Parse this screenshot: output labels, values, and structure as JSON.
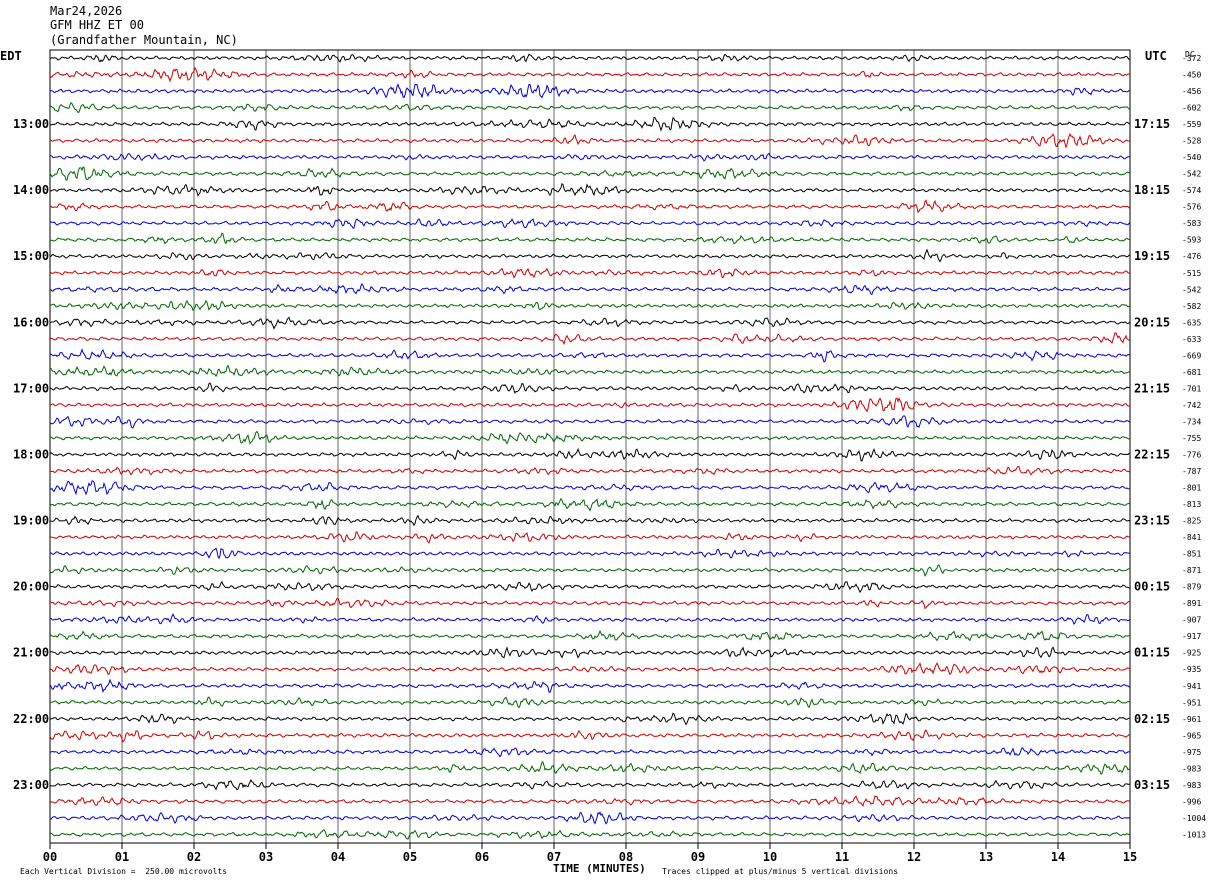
{
  "header": {
    "date": "Mar24,2026",
    "station": "GFM HHZ ET 00",
    "location": "(Grandfather Mountain, NC)"
  },
  "left_tz": "EDT",
  "right_tz": "UTC",
  "dc_label": "DC",
  "chart_data": {
    "type": "line",
    "plot_kind": "helicorder",
    "xlabel": "TIME (MINUTES)",
    "x_ticks": [
      "00",
      "01",
      "02",
      "03",
      "04",
      "05",
      "06",
      "07",
      "08",
      "09",
      "10",
      "11",
      "12",
      "13",
      "14",
      "15"
    ],
    "x_range": [
      0,
      15
    ],
    "rows_per_hour": 4,
    "row_count": 48,
    "trace_colors": [
      "#000000",
      "#cc0000",
      "#0000cc",
      "#006600"
    ],
    "left_hour_labels": [
      "13:00",
      "14:00",
      "15:00",
      "16:00",
      "17:00",
      "18:00",
      "19:00",
      "20:00",
      "21:00",
      "22:00",
      "23:00"
    ],
    "right_hour_labels": [
      "17:15",
      "18:15",
      "19:15",
      "20:15",
      "21:15",
      "22:15",
      "23:15",
      "00:15",
      "01:15",
      "02:15",
      "03:15"
    ],
    "dc_offsets": [
      -372,
      -450,
      -456,
      -602,
      -559,
      -528,
      -540,
      -542,
      -574,
      -576,
      -583,
      -593,
      -476,
      -515,
      -542,
      -582,
      -635,
      -633,
      -669,
      -681,
      -701,
      -742,
      -734,
      -755,
      -776,
      -787,
      -801,
      -813,
      -825,
      -841,
      -851,
      -871,
      -879,
      -891,
      -907,
      -917,
      -925,
      -935,
      -941,
      -951,
      -961,
      -965,
      -975,
      -983,
      -983,
      -996,
      -1004,
      -1013
    ],
    "grid": "vertical",
    "scale_note": "Each Vertical Division =  250.00 microvolts",
    "clip_note": "Traces clipped at plus/minus 5 vertical divisions"
  }
}
